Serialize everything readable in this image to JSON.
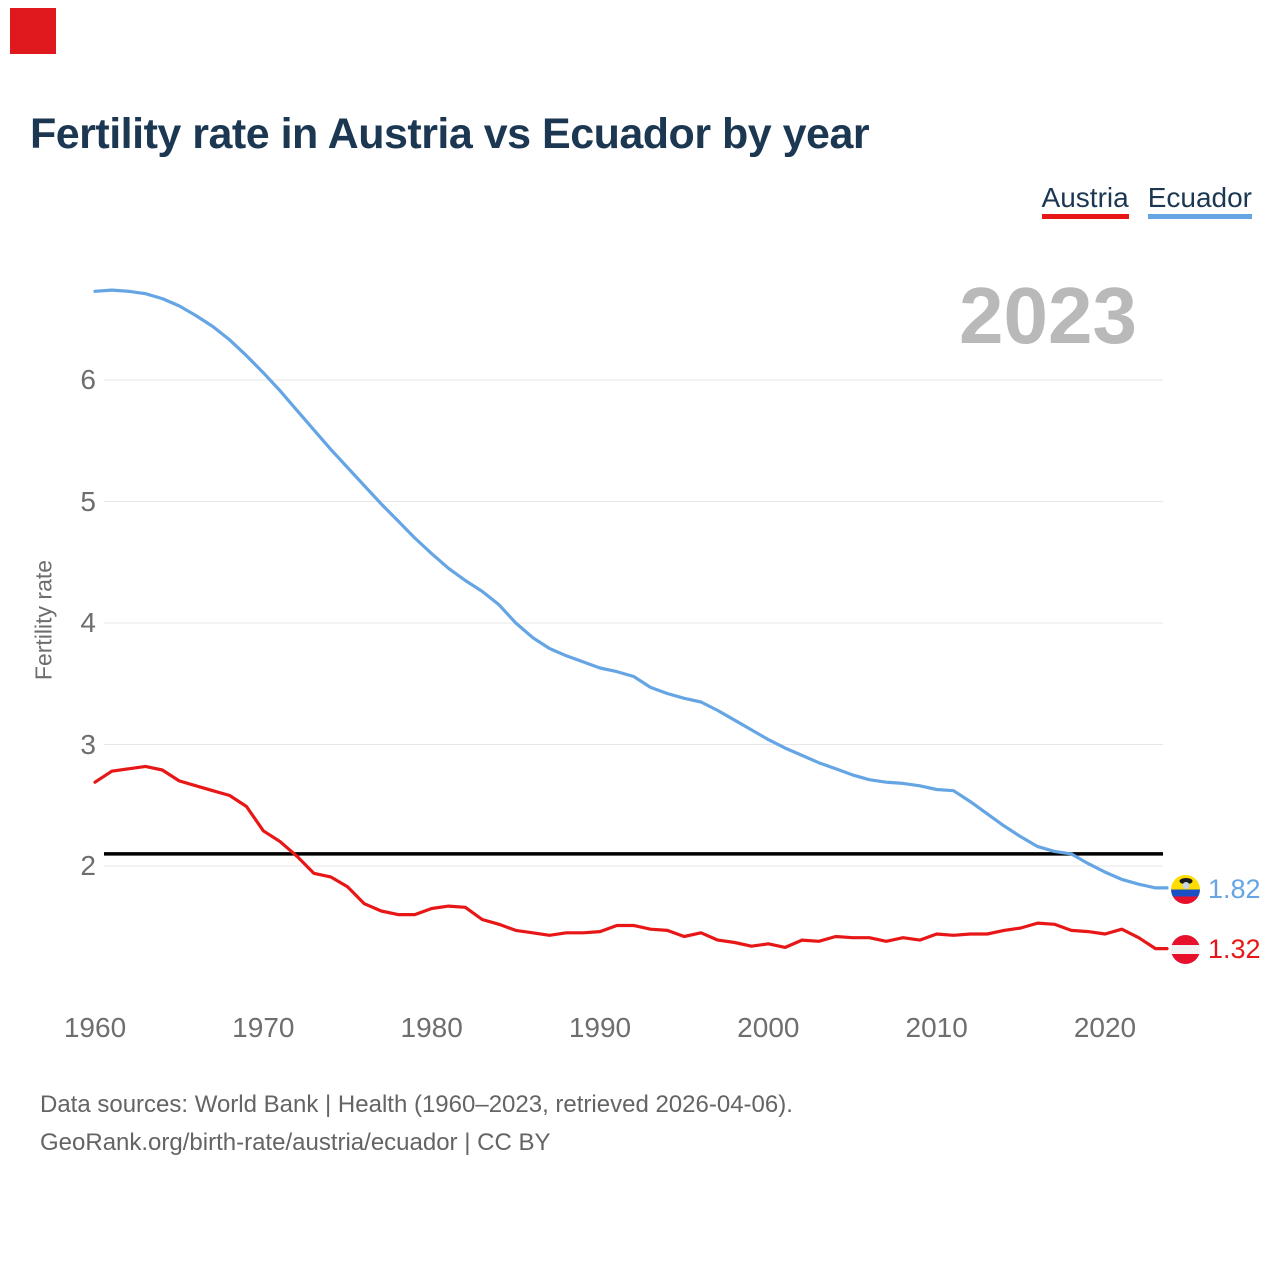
{
  "page": {
    "corner_marker_color": "#e0191e"
  },
  "title": "Fertility rate in Austria vs Ecuador by year",
  "watermark_year": "2023",
  "legend": {
    "items": [
      {
        "label": "Austria",
        "color": "#e81717"
      },
      {
        "label": "Ecuador",
        "color": "#66a5e3"
      }
    ]
  },
  "end_labels": {
    "ecuador": {
      "value": "1.82",
      "flag": "ecuador-flag"
    },
    "austria": {
      "value": "1.32",
      "flag": "austria-flag"
    }
  },
  "footer": {
    "line1": "Data sources: World Bank | Health (1960–2023, retrieved 2026-04-06).",
    "line2": "GeoRank.org/birth-rate/austria/ecuador | CC BY"
  },
  "chart_data": {
    "type": "line",
    "title": "Fertility rate in Austria vs Ecuador by year",
    "xlabel": "",
    "ylabel": "Fertility rate",
    "grid": "horizontal",
    "legend_position": "top-right",
    "x_ticks": [
      1960,
      1970,
      1980,
      1990,
      2000,
      2010,
      2020
    ],
    "y_ticks": [
      2,
      3,
      4,
      5,
      6
    ],
    "ylim": [
      1.25,
      6.9
    ],
    "replacement_level": 2.1,
    "years": [
      1960,
      1961,
      1962,
      1963,
      1964,
      1965,
      1966,
      1967,
      1968,
      1969,
      1970,
      1971,
      1972,
      1973,
      1974,
      1975,
      1976,
      1977,
      1978,
      1979,
      1980,
      1981,
      1982,
      1983,
      1984,
      1985,
      1986,
      1987,
      1988,
      1989,
      1990,
      1991,
      1992,
      1993,
      1994,
      1995,
      1996,
      1997,
      1998,
      1999,
      2000,
      2001,
      2002,
      2003,
      2004,
      2005,
      2006,
      2007,
      2008,
      2009,
      2010,
      2011,
      2012,
      2013,
      2014,
      2015,
      2016,
      2017,
      2018,
      2019,
      2020,
      2021,
      2022,
      2023
    ],
    "series": [
      {
        "name": "Ecuador",
        "color": "#66a5e3",
        "final_value_label": "1.82",
        "values": [
          6.73,
          6.74,
          6.73,
          6.71,
          6.67,
          6.61,
          6.53,
          6.44,
          6.33,
          6.2,
          6.06,
          5.91,
          5.75,
          5.59,
          5.43,
          5.28,
          5.13,
          4.98,
          4.84,
          4.7,
          4.57,
          4.45,
          4.35,
          4.26,
          4.15,
          4.0,
          3.88,
          3.79,
          3.73,
          3.68,
          3.63,
          3.6,
          3.56,
          3.47,
          3.42,
          3.38,
          3.35,
          3.28,
          3.2,
          3.12,
          3.04,
          2.97,
          2.91,
          2.85,
          2.8,
          2.75,
          2.71,
          2.69,
          2.68,
          2.66,
          2.63,
          2.62,
          2.53,
          2.43,
          2.33,
          2.24,
          2.16,
          2.12,
          2.1,
          2.02,
          1.95,
          1.89,
          1.85,
          1.82
        ]
      },
      {
        "name": "Austria",
        "color": "#e81717",
        "final_value_label": "1.32",
        "values": [
          2.69,
          2.78,
          2.8,
          2.82,
          2.79,
          2.7,
          2.66,
          2.62,
          2.58,
          2.49,
          2.29,
          2.2,
          2.08,
          1.94,
          1.91,
          1.83,
          1.69,
          1.63,
          1.6,
          1.6,
          1.65,
          1.67,
          1.66,
          1.56,
          1.52,
          1.47,
          1.45,
          1.43,
          1.45,
          1.45,
          1.46,
          1.51,
          1.51,
          1.48,
          1.47,
          1.42,
          1.45,
          1.39,
          1.37,
          1.34,
          1.36,
          1.33,
          1.39,
          1.38,
          1.42,
          1.41,
          1.41,
          1.38,
          1.41,
          1.39,
          1.44,
          1.43,
          1.44,
          1.44,
          1.47,
          1.49,
          1.53,
          1.52,
          1.47,
          1.46,
          1.44,
          1.48,
          1.41,
          1.32
        ]
      }
    ]
  }
}
